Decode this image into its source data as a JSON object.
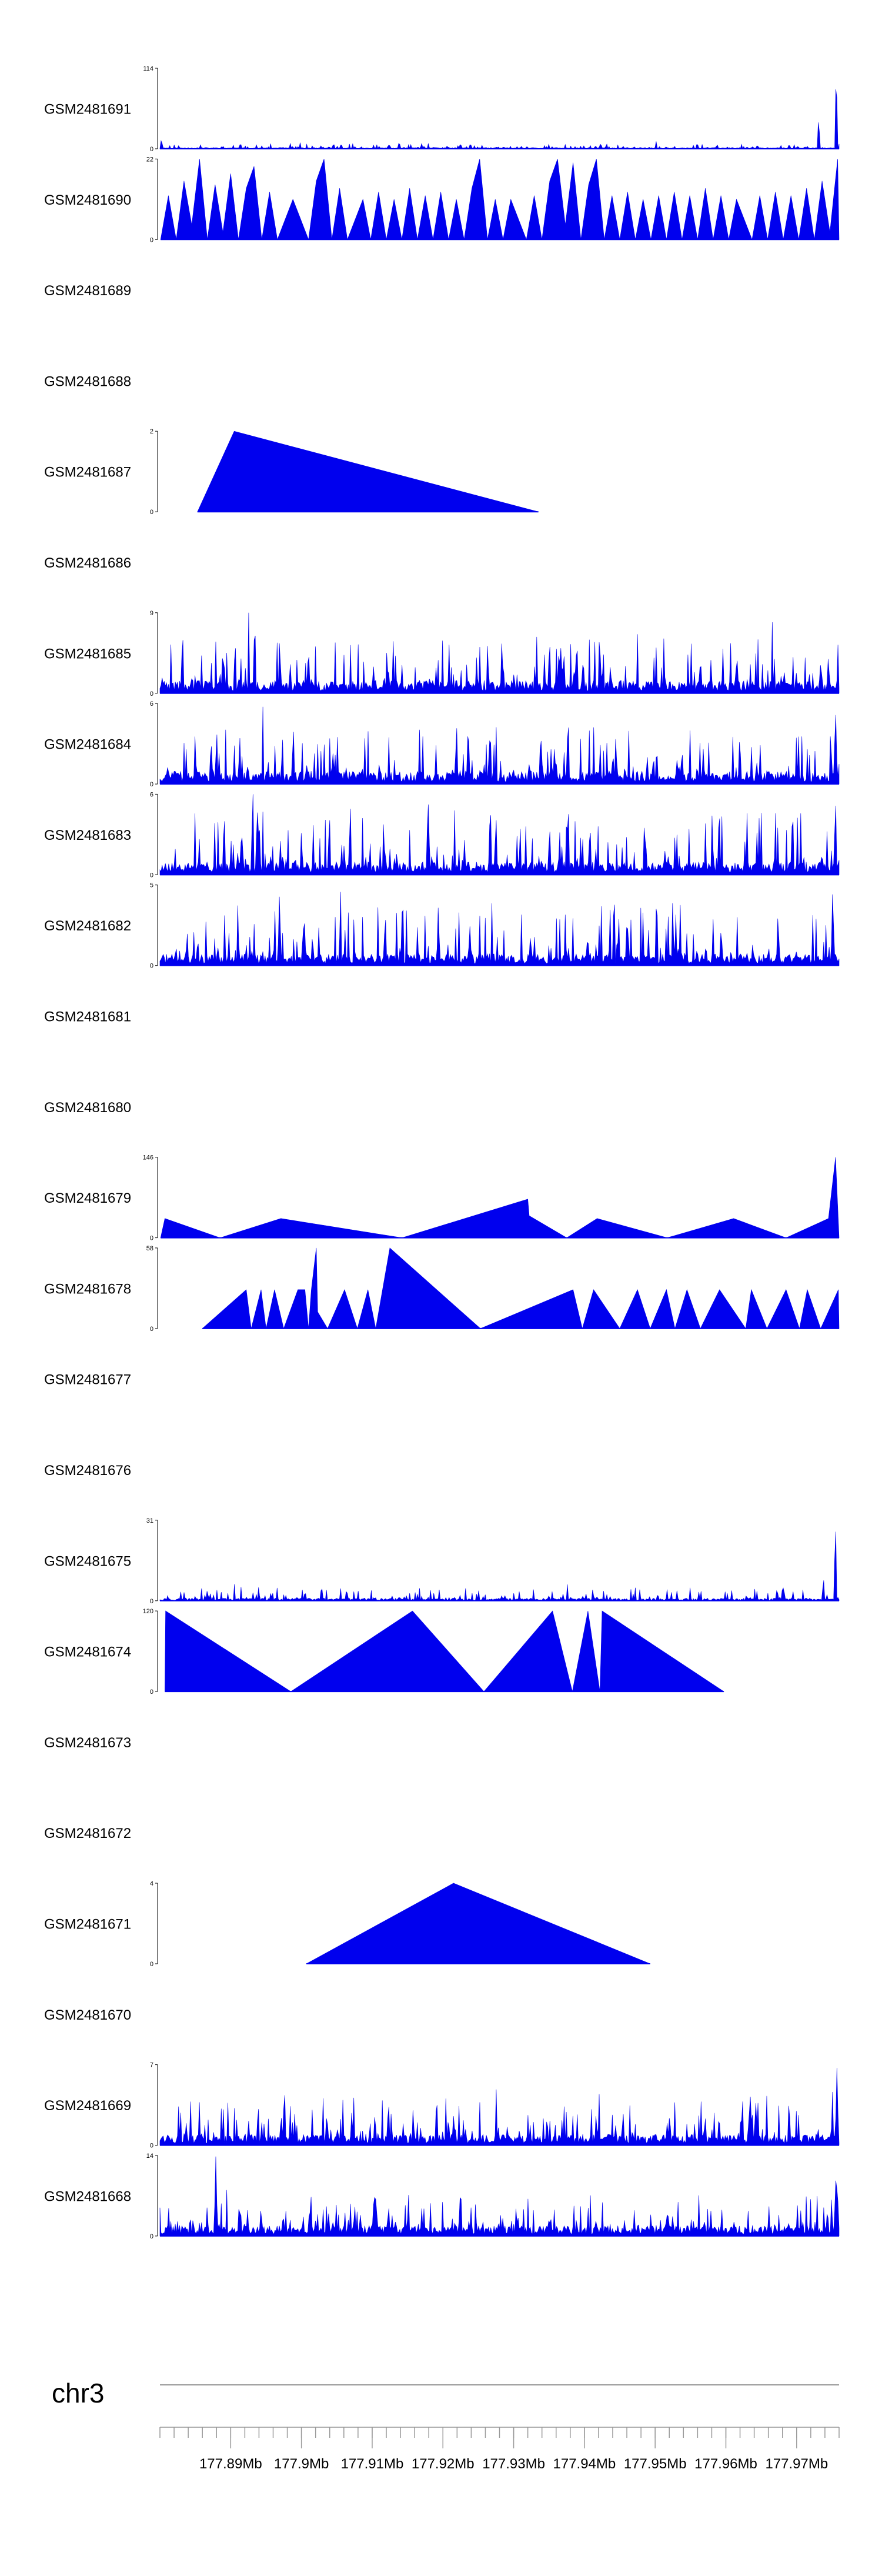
{
  "colors": {
    "signal": "#0000ee",
    "axis": "#000000",
    "ideogram": "#999999"
  },
  "chart_data": {
    "type": "area",
    "chromosome": "chr3",
    "xlim": [
      177.88,
      177.976
    ],
    "axis": {
      "ticks_mb": [
        177.89,
        177.9,
        177.91,
        177.92,
        177.93,
        177.94,
        177.95,
        177.96,
        177.97
      ],
      "tick_labels": [
        "177.89Mb",
        "177.9Mb",
        "177.91Mb",
        "177.92Mb",
        "177.93Mb",
        "177.94Mb",
        "177.95Mb",
        "177.96Mb",
        "177.97Mb"
      ]
    },
    "tracks": [
      {
        "name": "GSM2481691",
        "ymax": 114,
        "ymin_label": "0",
        "ymax_label": "114",
        "mode": "spiky",
        "base": 1.5,
        "amp": 6,
        "seed": 11,
        "peaks": [
          [
            177.8802,
            14
          ],
          [
            177.9731,
            45
          ],
          [
            177.9756,
            114
          ]
        ]
      },
      {
        "name": "GSM2481690",
        "ymax": 22,
        "ymin_label": "0",
        "ymax_label": "22",
        "mode": "tri",
        "points": [
          [
            177.8801,
            0
          ],
          [
            177.8812,
            12
          ],
          [
            177.8823,
            0
          ],
          [
            177.8834,
            16
          ],
          [
            177.8845,
            4
          ],
          [
            177.8856,
            22
          ],
          [
            177.8867,
            0
          ],
          [
            177.8878,
            15
          ],
          [
            177.8889,
            2
          ],
          [
            177.89,
            18
          ],
          [
            177.8911,
            0
          ],
          [
            177.8922,
            14
          ],
          [
            177.8933,
            20
          ],
          [
            177.8944,
            0
          ],
          [
            177.8955,
            13
          ],
          [
            177.8966,
            0
          ],
          [
            177.8988,
            11
          ],
          [
            177.901,
            0
          ],
          [
            177.9021,
            16
          ],
          [
            177.9032,
            22
          ],
          [
            177.9043,
            0
          ],
          [
            177.9054,
            14
          ],
          [
            177.9065,
            0
          ],
          [
            177.9087,
            11
          ],
          [
            177.9098,
            0
          ],
          [
            177.9109,
            13
          ],
          [
            177.912,
            0
          ],
          [
            177.9131,
            11
          ],
          [
            177.9142,
            0
          ],
          [
            177.9153,
            14
          ],
          [
            177.9164,
            0
          ],
          [
            177.9175,
            12
          ],
          [
            177.9186,
            0
          ],
          [
            177.9197,
            13
          ],
          [
            177.9208,
            0
          ],
          [
            177.9219,
            11
          ],
          [
            177.923,
            0
          ],
          [
            177.9241,
            14
          ],
          [
            177.9252,
            22
          ],
          [
            177.9263,
            0
          ],
          [
            177.9274,
            11
          ],
          [
            177.9285,
            0
          ],
          [
            177.9296,
            11
          ],
          [
            177.9318,
            0
          ],
          [
            177.9329,
            12
          ],
          [
            177.934,
            0
          ],
          [
            177.9351,
            16
          ],
          [
            177.9362,
            22
          ],
          [
            177.9373,
            4
          ],
          [
            177.9384,
            21
          ],
          [
            177.9395,
            0
          ],
          [
            177.9406,
            15
          ],
          [
            177.9417,
            22
          ],
          [
            177.9428,
            0
          ],
          [
            177.9439,
            12
          ],
          [
            177.945,
            0
          ],
          [
            177.9461,
            13
          ],
          [
            177.9472,
            0
          ],
          [
            177.9483,
            11
          ],
          [
            177.9494,
            0
          ],
          [
            177.9505,
            12
          ],
          [
            177.9516,
            0
          ],
          [
            177.9527,
            13
          ],
          [
            177.9538,
            0
          ],
          [
            177.9549,
            12
          ],
          [
            177.956,
            0
          ],
          [
            177.9571,
            14
          ],
          [
            177.9582,
            0
          ],
          [
            177.9593,
            12
          ],
          [
            177.9604,
            0
          ],
          [
            177.9615,
            11
          ],
          [
            177.9637,
            0
          ],
          [
            177.9648,
            12
          ],
          [
            177.9659,
            0
          ],
          [
            177.967,
            13
          ],
          [
            177.9681,
            0
          ],
          [
            177.9692,
            12
          ],
          [
            177.9703,
            0
          ],
          [
            177.9714,
            14
          ],
          [
            177.9725,
            0
          ],
          [
            177.9736,
            16
          ],
          [
            177.9747,
            2
          ],
          [
            177.9758,
            22
          ],
          [
            177.976,
            0
          ]
        ]
      },
      {
        "name": "GSM2481689",
        "ymax": 0,
        "mode": "empty"
      },
      {
        "name": "GSM2481688",
        "ymax": 0,
        "mode": "empty"
      },
      {
        "name": "GSM2481687",
        "ymax": 2,
        "ymin_label": "0",
        "ymax_label": "2",
        "mode": "tri",
        "points": [
          [
            177.8853,
            0
          ],
          [
            177.8905,
            2
          ],
          [
            177.9335,
            0
          ]
        ]
      },
      {
        "name": "GSM2481686",
        "ymax": 0,
        "mode": "empty"
      },
      {
        "name": "GSM2481685",
        "ymax": 9,
        "ymin_label": "0",
        "ymax_label": "9",
        "mode": "spiky",
        "base": 1.2,
        "amp": 5.5,
        "seed": 23,
        "peaks": [
          [
            177.8832,
            7.5
          ],
          [
            177.8934,
            9
          ]
        ]
      },
      {
        "name": "GSM2481684",
        "ymax": 6,
        "ymin_label": "0",
        "ymax_label": "6",
        "mode": "spiky",
        "base": 0.8,
        "amp": 3.4,
        "seed": 37,
        "peaks": [
          [
            177.9755,
            6
          ],
          [
            177.9748,
            4.2
          ]
        ]
      },
      {
        "name": "GSM2481683",
        "ymax": 6,
        "ymin_label": "0",
        "ymax_label": "6",
        "mode": "spiky",
        "base": 0.8,
        "amp": 4.6,
        "seed": 53,
        "peaks": [
          [
            177.9755,
            6
          ],
          [
            177.9377,
            5.8
          ]
        ]
      },
      {
        "name": "GSM2481682",
        "ymax": 5,
        "ymin_label": "0",
        "ymax_label": "5",
        "mode": "spiky",
        "base": 0.6,
        "amp": 3.4,
        "seed": 71,
        "peaks": [
          [
            177.9751,
            5
          ],
          [
            177.9143,
            4.9
          ],
          [
            177.8969,
            4.7
          ]
        ]
      },
      {
        "name": "GSM2481681",
        "ymax": 0,
        "mode": "empty"
      },
      {
        "name": "GSM2481680",
        "ymax": 0,
        "mode": "empty"
      },
      {
        "name": "GSM2481679",
        "ymax": 146,
        "ymin_label": "0",
        "ymax_label": "146",
        "mode": "tri",
        "points": [
          [
            177.8801,
            0
          ],
          [
            177.8807,
            35
          ],
          [
            177.8885,
            0
          ],
          [
            177.8971,
            35
          ],
          [
            177.9142,
            0
          ],
          [
            177.932,
            70
          ],
          [
            177.9322,
            40
          ],
          [
            177.9375,
            0
          ],
          [
            177.9418,
            35
          ],
          [
            177.9517,
            0
          ],
          [
            177.9611,
            35
          ],
          [
            177.9685,
            0
          ],
          [
            177.9745,
            35
          ],
          [
            177.9755,
            146
          ],
          [
            177.976,
            0
          ]
        ]
      },
      {
        "name": "GSM2481678",
        "ymax": 58,
        "ymin_label": "0",
        "ymax_label": "58",
        "mode": "tri",
        "points": [
          [
            177.886,
            0
          ],
          [
            177.8922,
            28
          ],
          [
            177.8929,
            0
          ],
          [
            177.8943,
            28
          ],
          [
            177.895,
            0
          ],
          [
            177.8962,
            28
          ],
          [
            177.8975,
            0
          ],
          [
            177.8995,
            28
          ],
          [
            177.9005,
            28
          ],
          [
            177.901,
            0
          ],
          [
            177.9014,
            28
          ],
          [
            177.9021,
            58
          ],
          [
            177.9023,
            12
          ],
          [
            177.9037,
            0
          ],
          [
            177.9061,
            28
          ],
          [
            177.9079,
            0
          ],
          [
            177.9094,
            28
          ],
          [
            177.9105,
            0
          ],
          [
            177.9125,
            58
          ],
          [
            177.9253,
            0
          ],
          [
            177.9384,
            28
          ],
          [
            177.9397,
            0
          ],
          [
            177.9413,
            28
          ],
          [
            177.945,
            0
          ],
          [
            177.9475,
            28
          ],
          [
            177.9493,
            0
          ],
          [
            177.9516,
            28
          ],
          [
            177.9528,
            0
          ],
          [
            177.9545,
            28
          ],
          [
            177.9564,
            0
          ],
          [
            177.9591,
            28
          ],
          [
            177.9628,
            0
          ],
          [
            177.9636,
            28
          ],
          [
            177.9658,
            0
          ],
          [
            177.9685,
            28
          ],
          [
            177.9704,
            0
          ],
          [
            177.9715,
            28
          ],
          [
            177.9734,
            0
          ],
          [
            177.9759,
            28
          ],
          [
            177.976,
            0
          ]
        ]
      },
      {
        "name": "GSM2481677",
        "ymax": 0,
        "mode": "empty"
      },
      {
        "name": "GSM2481676",
        "ymax": 0,
        "mode": "empty"
      },
      {
        "name": "GSM2481675",
        "ymax": 31,
        "ymin_label": "0",
        "ymax_label": "31",
        "mode": "spiky",
        "base": 0.8,
        "amp": 4.2,
        "seed": 97,
        "peaks": [
          [
            177.9755,
            31
          ],
          [
            177.9738,
            9
          ]
        ]
      },
      {
        "name": "GSM2481674",
        "ymax": 120,
        "ymin_label": "0",
        "ymax_label": "120",
        "mode": "tri",
        "points": [
          [
            177.8807,
            0
          ],
          [
            177.8808,
            120
          ],
          [
            177.8985,
            0
          ],
          [
            177.9157,
            120
          ],
          [
            177.9258,
            0
          ],
          [
            177.9355,
            120
          ],
          [
            177.9383,
            0
          ],
          [
            177.9405,
            120
          ],
          [
            177.9422,
            0
          ],
          [
            177.9425,
            120
          ],
          [
            177.9597,
            0
          ]
        ]
      },
      {
        "name": "GSM2481673",
        "ymax": 0,
        "mode": "empty"
      },
      {
        "name": "GSM2481672",
        "ymax": 0,
        "mode": "empty"
      },
      {
        "name": "GSM2481671",
        "ymax": 4,
        "ymin_label": "0",
        "ymax_label": "4",
        "mode": "tri",
        "points": [
          [
            177.9007,
            0
          ],
          [
            177.9215,
            4
          ],
          [
            177.9493,
            0
          ]
        ]
      },
      {
        "name": "GSM2481670",
        "ymax": 0,
        "mode": "empty"
      },
      {
        "name": "GSM2481669",
        "ymax": 7,
        "ymin_label": "0",
        "ymax_label": "7",
        "mode": "spiky",
        "base": 0.8,
        "amp": 3.6,
        "seed": 131,
        "peaks": [
          [
            177.9757,
            7
          ],
          [
            177.8976,
            5.5
          ]
        ]
      },
      {
        "name": "GSM2481668",
        "ymax": 14,
        "ymin_label": "0",
        "ymax_label": "14",
        "mode": "spiky",
        "base": 1.5,
        "amp": 5.5,
        "seed": 149,
        "peaks": [
          [
            177.8879,
            14
          ],
          [
            177.9756,
            13
          ],
          [
            177.9225,
            9.5
          ]
        ]
      }
    ]
  }
}
